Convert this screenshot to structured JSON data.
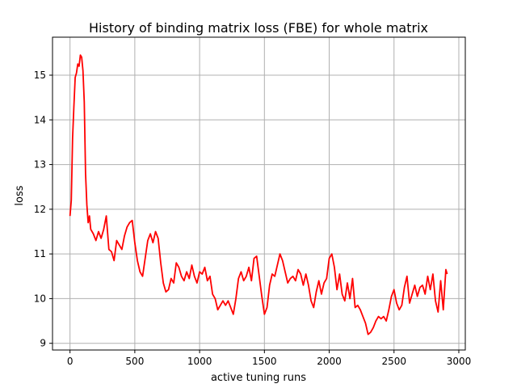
{
  "chart_data": {
    "type": "line",
    "title": "History of binding matrix loss (FBE) for whole matrix",
    "xlabel": "active tuning runs",
    "ylabel": "loss",
    "xlim": [
      -135,
      3050
    ],
    "ylim": [
      8.85,
      15.85
    ],
    "xticks": [
      0,
      500,
      1000,
      1500,
      2000,
      2500,
      3000
    ],
    "xtick_labels": [
      "0",
      "500",
      "1000",
      "1500",
      "2000",
      "2500",
      "3000"
    ],
    "yticks": [
      9,
      10,
      11,
      12,
      13,
      14,
      15
    ],
    "ytick_labels": [
      "9",
      "10",
      "11",
      "12",
      "13",
      "14",
      "15"
    ],
    "grid": true,
    "series": [
      {
        "color": "#ff0000",
        "x": [
          0,
          10,
          20,
          30,
          40,
          50,
          60,
          70,
          80,
          90,
          100,
          110,
          120,
          130,
          140,
          150,
          160,
          180,
          200,
          220,
          240,
          260,
          280,
          300,
          320,
          340,
          360,
          380,
          400,
          420,
          440,
          460,
          480,
          500,
          520,
          540,
          560,
          580,
          600,
          620,
          640,
          660,
          680,
          700,
          720,
          740,
          760,
          780,
          800,
          820,
          840,
          860,
          880,
          900,
          920,
          940,
          960,
          980,
          1000,
          1020,
          1040,
          1060,
          1080,
          1100,
          1120,
          1140,
          1160,
          1180,
          1200,
          1220,
          1240,
          1260,
          1280,
          1300,
          1320,
          1340,
          1360,
          1380,
          1400,
          1420,
          1440,
          1460,
          1480,
          1500,
          1520,
          1540,
          1560,
          1580,
          1600,
          1620,
          1640,
          1660,
          1680,
          1700,
          1720,
          1740,
          1760,
          1780,
          1800,
          1820,
          1840,
          1860,
          1880,
          1900,
          1920,
          1940,
          1960,
          1980,
          2000,
          2020,
          2040,
          2060,
          2080,
          2100,
          2120,
          2140,
          2160,
          2180,
          2200,
          2220,
          2240,
          2260,
          2280,
          2300,
          2320,
          2340,
          2360,
          2380,
          2400,
          2420,
          2440,
          2460,
          2480,
          2500,
          2520,
          2540,
          2560,
          2580,
          2600,
          2620,
          2640,
          2660,
          2680,
          2700,
          2720,
          2740,
          2760,
          2780,
          2800,
          2820,
          2840,
          2860,
          2880,
          2900,
          2910
        ],
        "y": [
          11.85,
          12.2,
          13.6,
          14.3,
          14.95,
          15.05,
          15.25,
          15.2,
          15.45,
          15.4,
          15.1,
          14.4,
          12.8,
          12.1,
          11.7,
          11.85,
          11.55,
          11.45,
          11.3,
          11.5,
          11.35,
          11.55,
          11.85,
          11.1,
          11.05,
          10.85,
          11.3,
          11.2,
          11.1,
          11.4,
          11.6,
          11.7,
          11.75,
          11.25,
          10.85,
          10.6,
          10.5,
          10.9,
          11.3,
          11.45,
          11.25,
          11.5,
          11.35,
          10.8,
          10.35,
          10.15,
          10.2,
          10.45,
          10.35,
          10.8,
          10.7,
          10.5,
          10.4,
          10.6,
          10.45,
          10.75,
          10.5,
          10.35,
          10.6,
          10.55,
          10.7,
          10.4,
          10.5,
          10.1,
          10.0,
          9.75,
          9.85,
          9.95,
          9.85,
          9.95,
          9.8,
          9.65,
          10.0,
          10.45,
          10.6,
          10.4,
          10.5,
          10.7,
          10.4,
          10.9,
          10.95,
          10.5,
          10.05,
          9.65,
          9.8,
          10.3,
          10.55,
          10.5,
          10.75,
          11.0,
          10.85,
          10.6,
          10.35,
          10.45,
          10.5,
          10.4,
          10.65,
          10.55,
          10.3,
          10.55,
          10.3,
          9.95,
          9.8,
          10.15,
          10.4,
          10.1,
          10.35,
          10.45,
          10.9,
          11.0,
          10.7,
          10.2,
          10.55,
          10.1,
          9.95,
          10.35,
          10.0,
          10.45,
          9.8,
          9.85,
          9.75,
          9.6,
          9.45,
          9.2,
          9.25,
          9.35,
          9.5,
          9.6,
          9.55,
          9.6,
          9.5,
          9.75,
          10.05,
          10.2,
          9.9,
          9.75,
          9.85,
          10.25,
          10.5,
          9.9,
          10.1,
          10.3,
          10.05,
          10.25,
          10.3,
          10.1,
          10.5,
          10.2,
          10.55,
          9.95,
          9.7,
          10.4,
          9.75,
          10.65,
          10.55
        ]
      }
    ]
  }
}
